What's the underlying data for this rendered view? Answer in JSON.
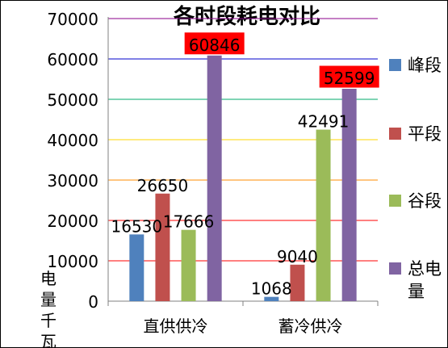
{
  "chart_data": {
    "type": "bar",
    "title": "各时段耗电对比",
    "ylabel": "电量千瓦",
    "xlabel": "",
    "categories": [
      "直供供冷",
      "蓄冷供冷"
    ],
    "series": [
      {
        "name": "峰段",
        "values": [
          16530,
          1068
        ],
        "color": "#4F81BD"
      },
      {
        "name": "平段",
        "values": [
          26650,
          9040
        ],
        "color": "#C0504D"
      },
      {
        "name": "谷段",
        "values": [
          17666,
          42491
        ],
        "color": "#9BBB59"
      },
      {
        "name": "总电量",
        "values": [
          60846,
          52599
        ],
        "color": "#8064A2"
      }
    ],
    "ylim": [
      0,
      70000
    ],
    "yticks": [
      0,
      10000,
      20000,
      30000,
      40000,
      50000,
      60000,
      70000
    ],
    "gridline_colors": [
      "#FF0000",
      "#FF0000",
      "#FF8C00",
      "#FFD700",
      "#00A86B",
      "#0000CD",
      "#8B008B"
    ],
    "highlighted_labels": [
      "总电量"
    ],
    "highlight_color": "#FF0000",
    "legend_position": "right"
  }
}
